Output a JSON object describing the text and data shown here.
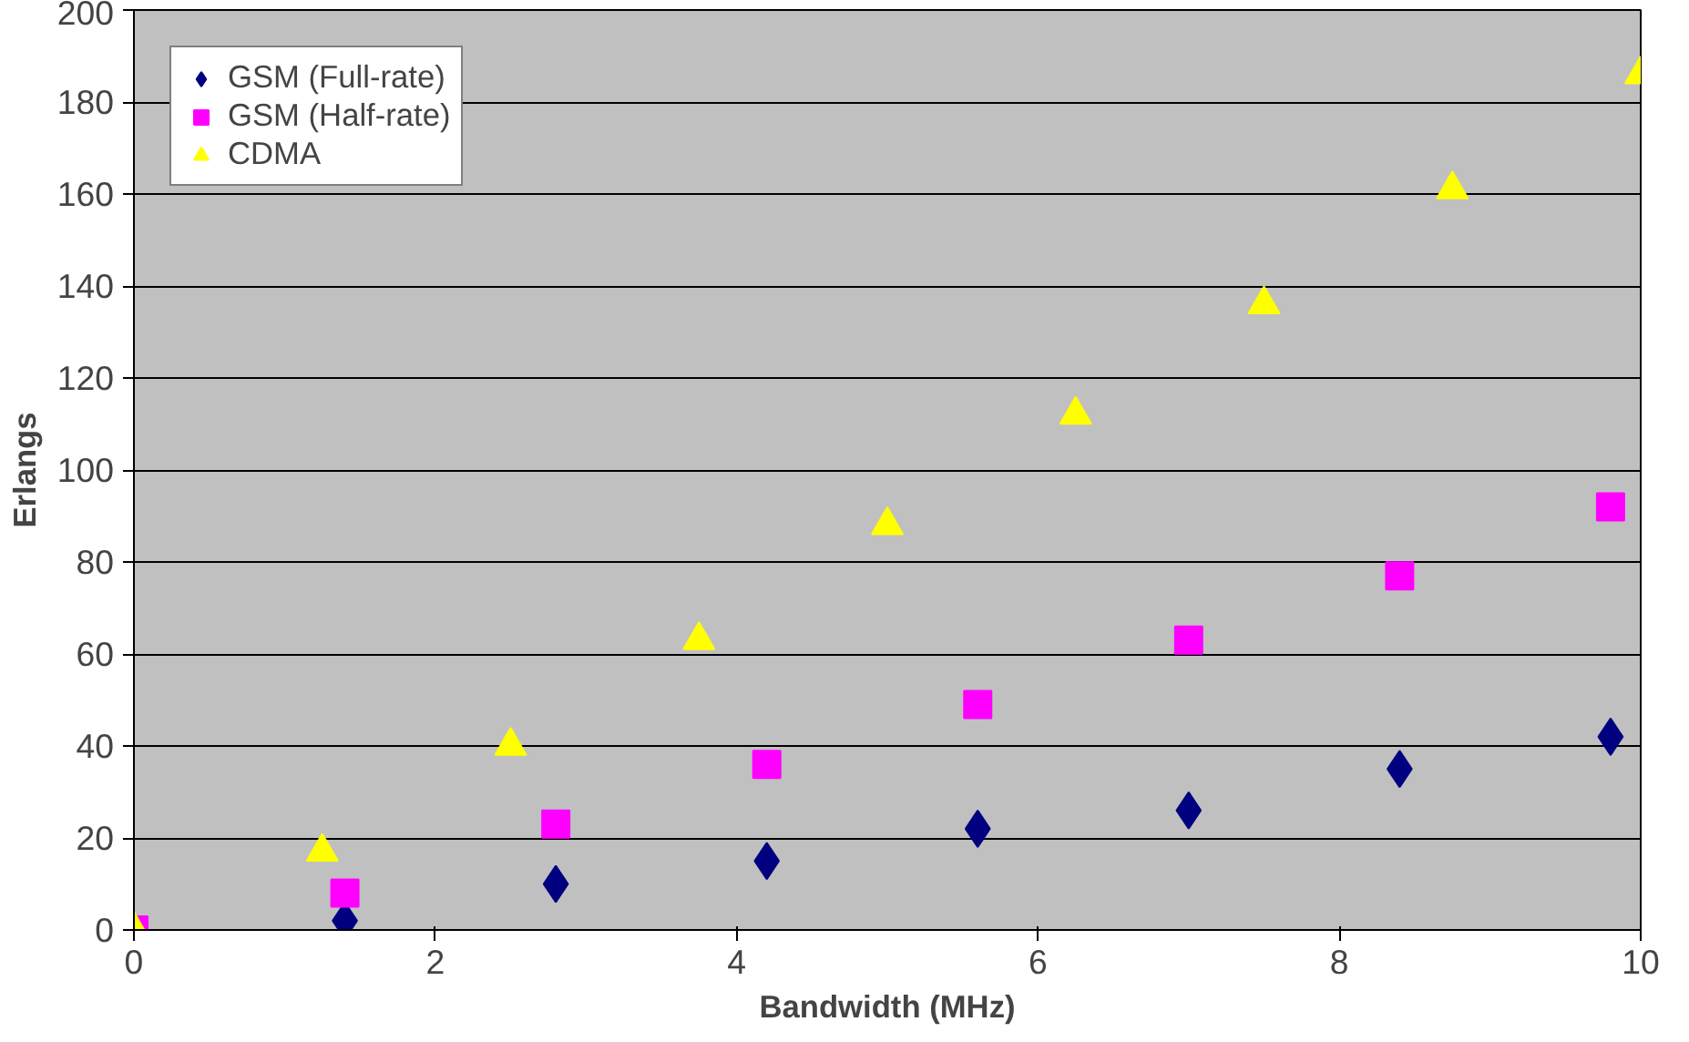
{
  "chart_data": {
    "type": "scatter",
    "xlabel": "Bandwidth (MHz)",
    "ylabel": "Erlangs",
    "xlim": [
      0,
      10
    ],
    "xticks": [
      0,
      2,
      4,
      6,
      8,
      10
    ],
    "ylim": [
      0,
      200
    ],
    "yticks": [
      0,
      20,
      40,
      60,
      80,
      100,
      120,
      140,
      160,
      180,
      200
    ],
    "grid": "y",
    "legend": "top left",
    "series": [
      {
        "name": "GSM (Full-rate)",
        "color": "#000080",
        "marker": "diamond",
        "x": [
          1.4,
          2.8,
          4.2,
          5.6,
          7.0,
          8.4,
          9.8
        ],
        "values": [
          2,
          10,
          15,
          22,
          26,
          35,
          42
        ]
      },
      {
        "name": "GSM (Half-rate)",
        "color": "#ff00ff",
        "marker": "square",
        "x": [
          0,
          1.4,
          2.8,
          4.2,
          5.6,
          7.0,
          8.4,
          9.8
        ],
        "values": [
          0,
          8,
          23,
          36,
          49,
          63,
          77,
          92
        ]
      },
      {
        "name": "CDMA",
        "color": "#ffff00",
        "marker": "triangle",
        "x": [
          0,
          1.25,
          2.5,
          3.75,
          5,
          6.25,
          7.5,
          8.75,
          10
        ],
        "values": [
          0,
          17,
          40,
          63,
          88,
          112,
          136,
          161,
          186
        ]
      }
    ]
  }
}
